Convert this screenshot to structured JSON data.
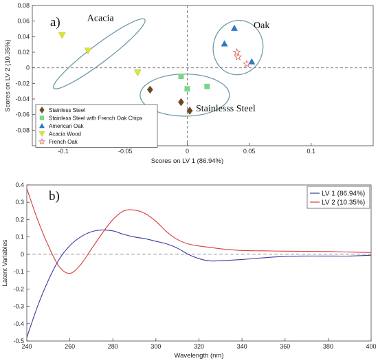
{
  "chart_data": [
    {
      "type": "scatter",
      "panel_label": "a)",
      "xlabel": "Scores on LV 1 (86.94%)",
      "ylabel": "Scores on LV 2 (10.35%)",
      "xlim": [
        -0.125,
        0.15
      ],
      "ylim": [
        -0.1,
        0.08
      ],
      "xticks": [
        "-0.1",
        "-0.05",
        "0",
        "0.05",
        "0.1"
      ],
      "yticks": [
        "0.08",
        "0.06",
        "0.04",
        "0.02",
        "0",
        "-0.02",
        "-0.04",
        "-0.06",
        "-0.08"
      ],
      "grid": false,
      "reference_lines": {
        "x": 0,
        "y": 0
      },
      "legend_position": "bottom-left",
      "series": [
        {
          "name": "Stainless Steel",
          "marker": "diamond",
          "color": "#6b4a22",
          "points": [
            [
              -0.03,
              -0.028
            ],
            [
              -0.005,
              -0.044
            ],
            [
              0.002,
              -0.055
            ]
          ]
        },
        {
          "name": "Stainless Steel with French Oak Chips",
          "marker": "square",
          "color": "#7bd68b",
          "points": [
            [
              -0.005,
              -0.011
            ],
            [
              0.0,
              -0.027
            ],
            [
              0.016,
              -0.024
            ]
          ]
        },
        {
          "name": "American Oak",
          "marker": "triangle-up",
          "color": "#2d7bc4",
          "points": [
            [
              0.038,
              0.051
            ],
            [
              0.03,
              0.031
            ],
            [
              0.052,
              0.008
            ]
          ]
        },
        {
          "name": "Acacia Wood",
          "marker": "triangle-down",
          "color": "#d9e63c",
          "points": [
            [
              -0.101,
              0.042
            ],
            [
              -0.08,
              0.022
            ],
            [
              -0.04,
              -0.006
            ]
          ]
        },
        {
          "name": "French Oak",
          "marker": "star",
          "color": "#e07070",
          "points": [
            [
              0.04,
              0.02
            ],
            [
              0.041,
              0.014
            ],
            [
              0.048,
              0.005
            ]
          ]
        }
      ],
      "groups": [
        {
          "label": "Acacia",
          "cx": -0.071,
          "cy": 0.018,
          "rx": 0.046,
          "ry": 0.0115,
          "angle_deg": 37,
          "label_x": -0.07,
          "label_y": 0.06
        },
        {
          "label": "Oak",
          "cx": 0.041,
          "cy": 0.026,
          "rx": 0.02,
          "ry": 0.035,
          "angle_deg": -12,
          "label_x": 0.06,
          "label_y": 0.051
        },
        {
          "label": "Stainlesss Steel",
          "cx": -0.002,
          "cy": -0.035,
          "rx": 0.036,
          "ry": 0.027,
          "angle_deg": 0,
          "label_x": 0.031,
          "label_y": -0.056
        }
      ]
    },
    {
      "type": "line",
      "panel_label": "b)",
      "xlabel": "Wavelength (nm)",
      "ylabel": "Latent Variables",
      "xlim": [
        240,
        400
      ],
      "ylim": [
        -0.5,
        0.4
      ],
      "xticks": [
        "240",
        "260",
        "280",
        "300",
        "320",
        "340",
        "360",
        "380",
        "400"
      ],
      "yticks": [
        "0.4",
        "0.3",
        "0.2",
        "0.1",
        "0",
        "-0.1",
        "-0.2",
        "-0.3",
        "-0.4",
        "-0.5"
      ],
      "grid": false,
      "reference_lines": {
        "y": 0
      },
      "legend_position": "top-right",
      "series": [
        {
          "name": "LV 1 (86.94%)",
          "color": "#3a3aa0",
          "points": [
            [
              240,
              -0.48
            ],
            [
              245,
              -0.3
            ],
            [
              250,
              -0.15
            ],
            [
              255,
              -0.03
            ],
            [
              260,
              0.05
            ],
            [
              265,
              0.1
            ],
            [
              270,
              0.13
            ],
            [
              275,
              0.14
            ],
            [
              280,
              0.135
            ],
            [
              285,
              0.115
            ],
            [
              290,
              0.1
            ],
            [
              295,
              0.09
            ],
            [
              300,
              0.075
            ],
            [
              305,
              0.06
            ],
            [
              310,
              0.035
            ],
            [
              315,
              0.0
            ],
            [
              320,
              -0.025
            ],
            [
              325,
              -0.038
            ],
            [
              330,
              -0.037
            ],
            [
              340,
              -0.03
            ],
            [
              350,
              -0.02
            ],
            [
              360,
              -0.012
            ],
            [
              370,
              -0.01
            ],
            [
              380,
              -0.01
            ],
            [
              390,
              -0.01
            ],
            [
              400,
              -0.005
            ]
          ]
        },
        {
          "name": "LV 2 (10.35%)",
          "color": "#d83a3a",
          "points": [
            [
              240,
              0.38
            ],
            [
              245,
              0.2
            ],
            [
              250,
              0.05
            ],
            [
              255,
              -0.07
            ],
            [
              260,
              -0.11
            ],
            [
              265,
              -0.06
            ],
            [
              270,
              0.03
            ],
            [
              275,
              0.12
            ],
            [
              280,
              0.2
            ],
            [
              285,
              0.25
            ],
            [
              290,
              0.255
            ],
            [
              295,
              0.235
            ],
            [
              300,
              0.19
            ],
            [
              305,
              0.13
            ],
            [
              310,
              0.085
            ],
            [
              315,
              0.06
            ],
            [
              320,
              0.048
            ],
            [
              325,
              0.04
            ],
            [
              330,
              0.032
            ],
            [
              340,
              0.022
            ],
            [
              350,
              0.02
            ],
            [
              360,
              0.018
            ],
            [
              370,
              0.017
            ],
            [
              380,
              0.016
            ],
            [
              390,
              0.013
            ],
            [
              400,
              0.01
            ]
          ]
        }
      ]
    }
  ]
}
